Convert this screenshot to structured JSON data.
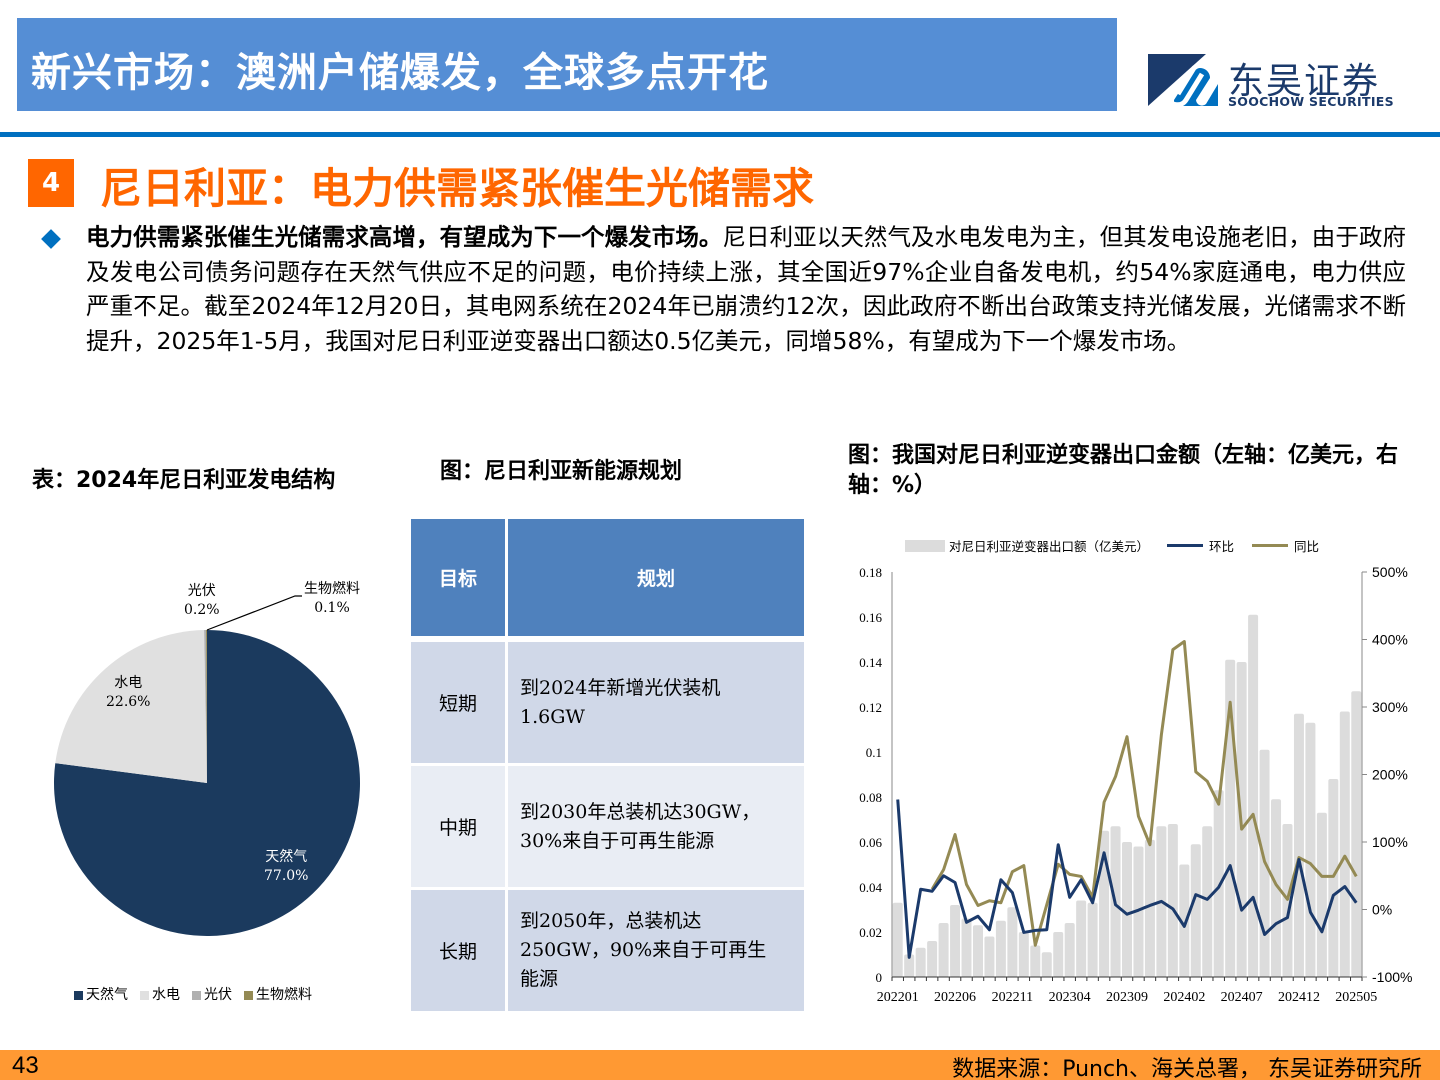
{
  "header": {
    "banner_title": "新兴市场：澳洲户储爆发，全球多点开花",
    "logo_cn": "东吴证券",
    "logo_en": "SOOCHOW SECURITIES"
  },
  "section": {
    "number": "4",
    "title": "尼日利亚：电力供需紧张催生光储需求"
  },
  "body": {
    "bold_lead": "电力供需紧张催生光储需求高增，有望成为下一个爆发市场。",
    "text": "尼日利亚以天然气及水电发电为主，但其发电设施老旧，由于政府及发电公司债务问题存在天然气供应不足的问题，电价持续上涨，其全国近97%企业自备发电机，约54%家庭通电，电力供应严重不足。截至2024年12月20日，其电网系统在2024年已崩溃约12次，因此政府不断出台政策支持光储发展，光储需求不断提升，2025年1-5月，我国对尼日利亚逆变器出口额达0.5亿美元，同增58%，有望成为下一个爆发市场。"
  },
  "captions": {
    "left": "表：2024年尼日利亚发电结构",
    "middle": "图：尼日利亚新能源规划",
    "right": "图：我国对尼日利亚逆变器出口金额（左轴：亿美元，右轴：%）"
  },
  "plan_table": {
    "headers": [
      "目标",
      "规划"
    ],
    "rows": [
      {
        "term": "短期",
        "plan_line1": "到2024年新增光伏装机",
        "plan_line2": "1.6GW",
        "plan_line3": ""
      },
      {
        "term": "中期",
        "plan_line1": "到2030年总装机达30GW，",
        "plan_line2": "30%来自于可再生能源",
        "plan_line3": ""
      },
      {
        "term": "长期",
        "plan_line1": "到2050年，总装机达",
        "plan_line2": "250GW，90%来自于可再生",
        "plan_line3": "能源"
      }
    ]
  },
  "footer": {
    "page_number": "43",
    "source": "数据来源：Punch、海关总署， 东吴证券研究所"
  },
  "colors": {
    "banner": "#558ED5",
    "divider": "#0070C0",
    "accent_orange": "#FF6600",
    "footer": "#FF9933",
    "navy": "#1B3A6B",
    "olive": "#948A54",
    "bar_gray": "#DCDCDC"
  },
  "chart_data": [
    {
      "type": "pie",
      "title": "2024年尼日利亚发电结构",
      "categories": [
        "天然气",
        "水电",
        "光伏",
        "生物燃料"
      ],
      "values": [
        77.0,
        22.6,
        0.2,
        0.1
      ],
      "labels": [
        "77.0%",
        "22.6%",
        "0.2%",
        "0.1%"
      ],
      "colors": [
        "#1B3A5E",
        "#E0E0E0",
        "#B0B0B0",
        "#948A54"
      ],
      "legend_position": "bottom"
    },
    {
      "type": "bar+line",
      "title": "我国对尼日利亚逆变器出口金额（左轴：亿美元，右轴：%）",
      "x": [
        "202201",
        "202202",
        "202203",
        "202204",
        "202205",
        "202206",
        "202207",
        "202208",
        "202209",
        "202210",
        "202211",
        "202212",
        "202301",
        "202302",
        "202303",
        "202304",
        "202305",
        "202306",
        "202307",
        "202308",
        "202309",
        "202310",
        "202311",
        "202312",
        "202401",
        "202402",
        "202403",
        "202404",
        "202405",
        "202406",
        "202407",
        "202408",
        "202409",
        "202410",
        "202411",
        "202412",
        "202501",
        "202502",
        "202503",
        "202504",
        "202505"
      ],
      "x_tick_labels": [
        "202201",
        "202206",
        "202211",
        "202304",
        "202309",
        "202402",
        "202407",
        "202412",
        "202505"
      ],
      "series": [
        {
          "name": "对尼日利亚逆变器出口额（亿美元）",
          "type": "bar",
          "axis": "left",
          "values": [
            0.033,
            0.01,
            0.013,
            0.016,
            0.024,
            0.032,
            0.026,
            0.023,
            0.018,
            0.025,
            0.031,
            0.02,
            0.014,
            0.011,
            0.02,
            0.024,
            0.034,
            0.033,
            0.065,
            0.067,
            0.06,
            0.058,
            0.061,
            0.067,
            0.068,
            0.05,
            0.059,
            0.067,
            0.083,
            0.141,
            0.14,
            0.161,
            0.101,
            0.079,
            0.068,
            0.117,
            0.113,
            0.073,
            0.088,
            0.118,
            0.127
          ]
        },
        {
          "name": "环比",
          "type": "line",
          "axis": "right",
          "values": [
            163,
            -71,
            30,
            27,
            50,
            40,
            -19,
            -10,
            -30,
            44,
            25,
            -34,
            -31,
            -30,
            96,
            18,
            44,
            10,
            84,
            7,
            -7,
            -1,
            6,
            12,
            1,
            -25,
            22,
            15,
            33,
            65,
            -1,
            18,
            -37,
            -21,
            -12,
            74,
            -4,
            -33,
            21,
            34,
            10
          ]
        },
        {
          "name": "同比",
          "type": "line",
          "axis": "right",
          "values": [
            null,
            null,
            null,
            30,
            59,
            111,
            37,
            6,
            13,
            10,
            56,
            65,
            -53,
            7,
            67,
            52,
            49,
            18,
            159,
            197,
            256,
            138,
            96,
            259,
            385,
            397,
            204,
            190,
            156,
            307,
            119,
            141,
            71,
            37,
            15,
            77,
            68,
            49,
            49,
            79,
            49
          ]
        }
      ],
      "left_axis": {
        "ylim": [
          0,
          0.18
        ],
        "ticks": [
          "0",
          "0.02",
          "0.04",
          "0.06",
          "0.08",
          "0.1",
          "0.12",
          "0.14",
          "0.16",
          "0.18"
        ]
      },
      "right_axis": {
        "ylim": [
          -100,
          500
        ],
        "ticks": [
          "-100%",
          "0%",
          "100%",
          "200%",
          "300%",
          "400%",
          "500%"
        ]
      },
      "legend_position": "top",
      "grid": false
    }
  ]
}
